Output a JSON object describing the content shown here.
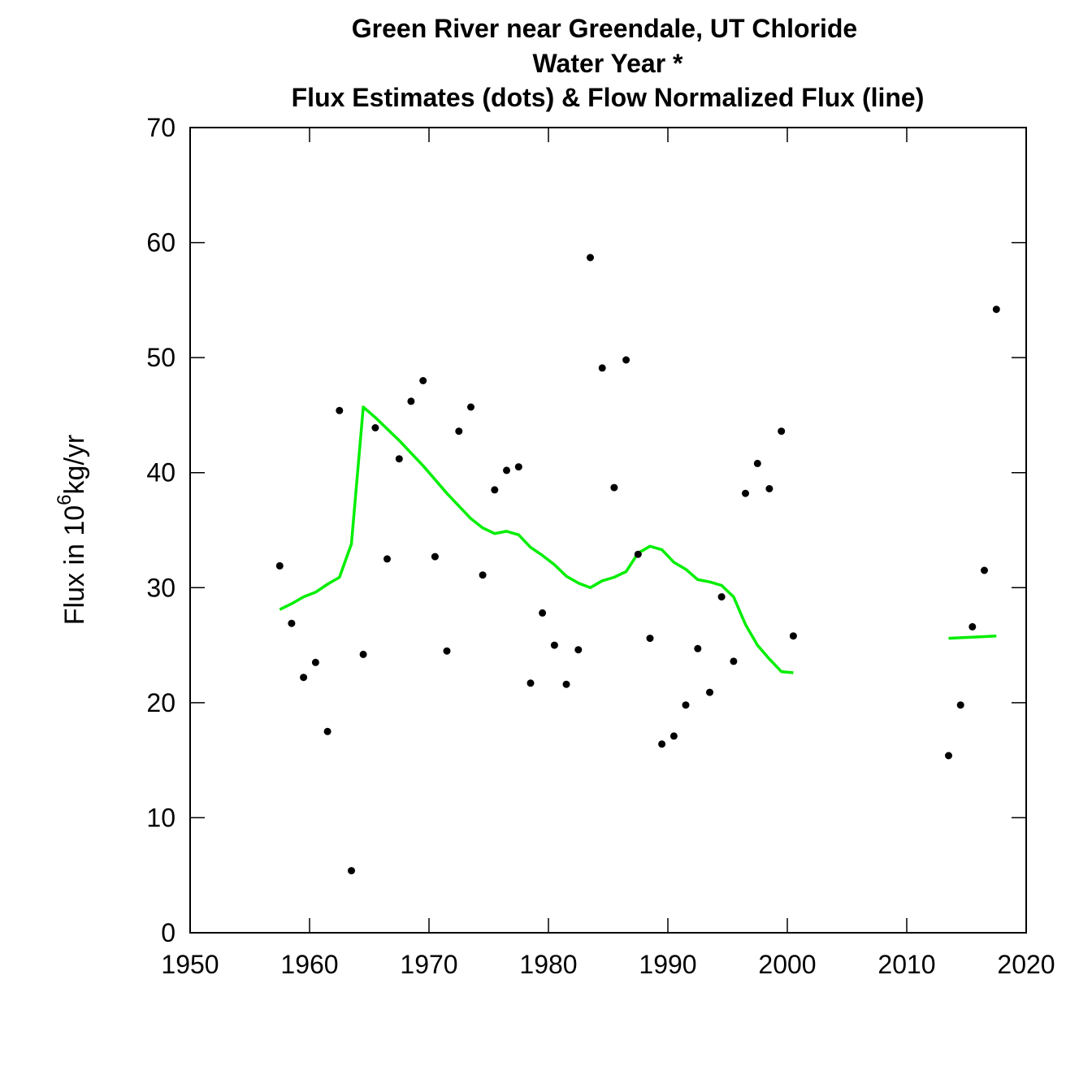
{
  "chart_data": {
    "type": "scatter",
    "title_lines": [
      "Green River near Greendale, UT   Chloride",
      "Water Year *",
      "Flux Estimates (dots) & Flow Normalized Flux (line)"
    ],
    "ylabel_prefix": "Flux in 10",
    "ylabel_exponent": "6",
    "ylabel_suffix": "kg/yr",
    "xlabel": "",
    "xlim": [
      1950,
      2020
    ],
    "ylim": [
      0,
      70
    ],
    "x_ticks": [
      1950,
      1960,
      1970,
      1980,
      1990,
      2000,
      2010,
      2020
    ],
    "y_ticks": [
      0,
      10,
      20,
      30,
      40,
      50,
      60,
      70
    ],
    "grid": false,
    "series": [
      {
        "kind": "points",
        "color": "#000000",
        "x": [
          1957.5,
          1958.5,
          1959.5,
          1960.5,
          1961.5,
          1962.5,
          1963.5,
          1964.5,
          1965.5,
          1966.5,
          1967.5,
          1968.5,
          1969.5,
          1970.5,
          1971.5,
          1972.5,
          1973.5,
          1974.5,
          1975.5,
          1976.5,
          1977.5,
          1978.5,
          1979.5,
          1980.5,
          1981.5,
          1982.5,
          1983.5,
          1984.5,
          1985.5,
          1986.5,
          1987.5,
          1988.5,
          1989.5,
          1990.5,
          1991.5,
          1992.5,
          1993.5,
          1994.5,
          1995.5,
          1996.5,
          1997.5,
          1998.5,
          1999.5,
          2000.5,
          2013.5,
          2014.5,
          2015.5,
          2016.5,
          2017.5
        ],
        "y": [
          31.9,
          26.9,
          22.2,
          23.5,
          17.5,
          45.4,
          5.4,
          24.2,
          43.9,
          32.5,
          41.2,
          46.2,
          48.0,
          32.7,
          24.5,
          43.6,
          45.7,
          31.1,
          38.5,
          40.2,
          40.5,
          21.7,
          27.8,
          25.0,
          21.6,
          24.6,
          58.7,
          49.1,
          38.7,
          49.8,
          32.9,
          25.6,
          16.4,
          17.1,
          19.8,
          24.7,
          20.9,
          29.2,
          23.6,
          38.2,
          40.8,
          38.6,
          43.6,
          25.8,
          15.4,
          19.8,
          26.6,
          31.5,
          54.2
        ]
      },
      {
        "kind": "line",
        "color": "#00ee00",
        "segments": [
          {
            "x": [
              1957.5,
              1958.5,
              1959.5,
              1960.5,
              1961.5,
              1962.5,
              1963.5,
              1964.5,
              1965.5,
              1966.5,
              1967.5,
              1968.5,
              1969.5,
              1970.5,
              1971.5,
              1972.5,
              1973.5,
              1974.5,
              1975.5,
              1976.5,
              1977.5,
              1978.5,
              1979.5,
              1980.5,
              1981.5,
              1982.5,
              1983.5,
              1984.5,
              1985.5,
              1986.5,
              1987.5,
              1988.5,
              1989.5,
              1990.5,
              1991.5,
              1992.5,
              1993.5,
              1994.5,
              1995.5,
              1996.5,
              1997.5,
              1998.5,
              1999.5,
              2000.5
            ],
            "y": [
              28.1,
              28.6,
              29.2,
              29.6,
              30.3,
              30.9,
              33.8,
              45.7,
              44.8,
              43.8,
              42.8,
              41.7,
              40.6,
              39.4,
              38.2,
              37.1,
              36.0,
              35.2,
              34.7,
              34.9,
              34.6,
              33.5,
              32.8,
              32.0,
              31.0,
              30.4,
              30.0,
              30.6,
              30.9,
              31.4,
              33.0,
              33.6,
              33.3,
              32.2,
              31.6,
              30.7,
              30.5,
              30.2,
              29.2,
              26.8,
              25.0,
              23.8,
              22.7,
              22.6
            ]
          },
          {
            "x": [
              2013.5,
              2014.5,
              2015.5,
              2016.5,
              2017.5
            ],
            "y": [
              25.6,
              25.65,
              25.7,
              25.75,
              25.8
            ]
          }
        ]
      }
    ]
  }
}
